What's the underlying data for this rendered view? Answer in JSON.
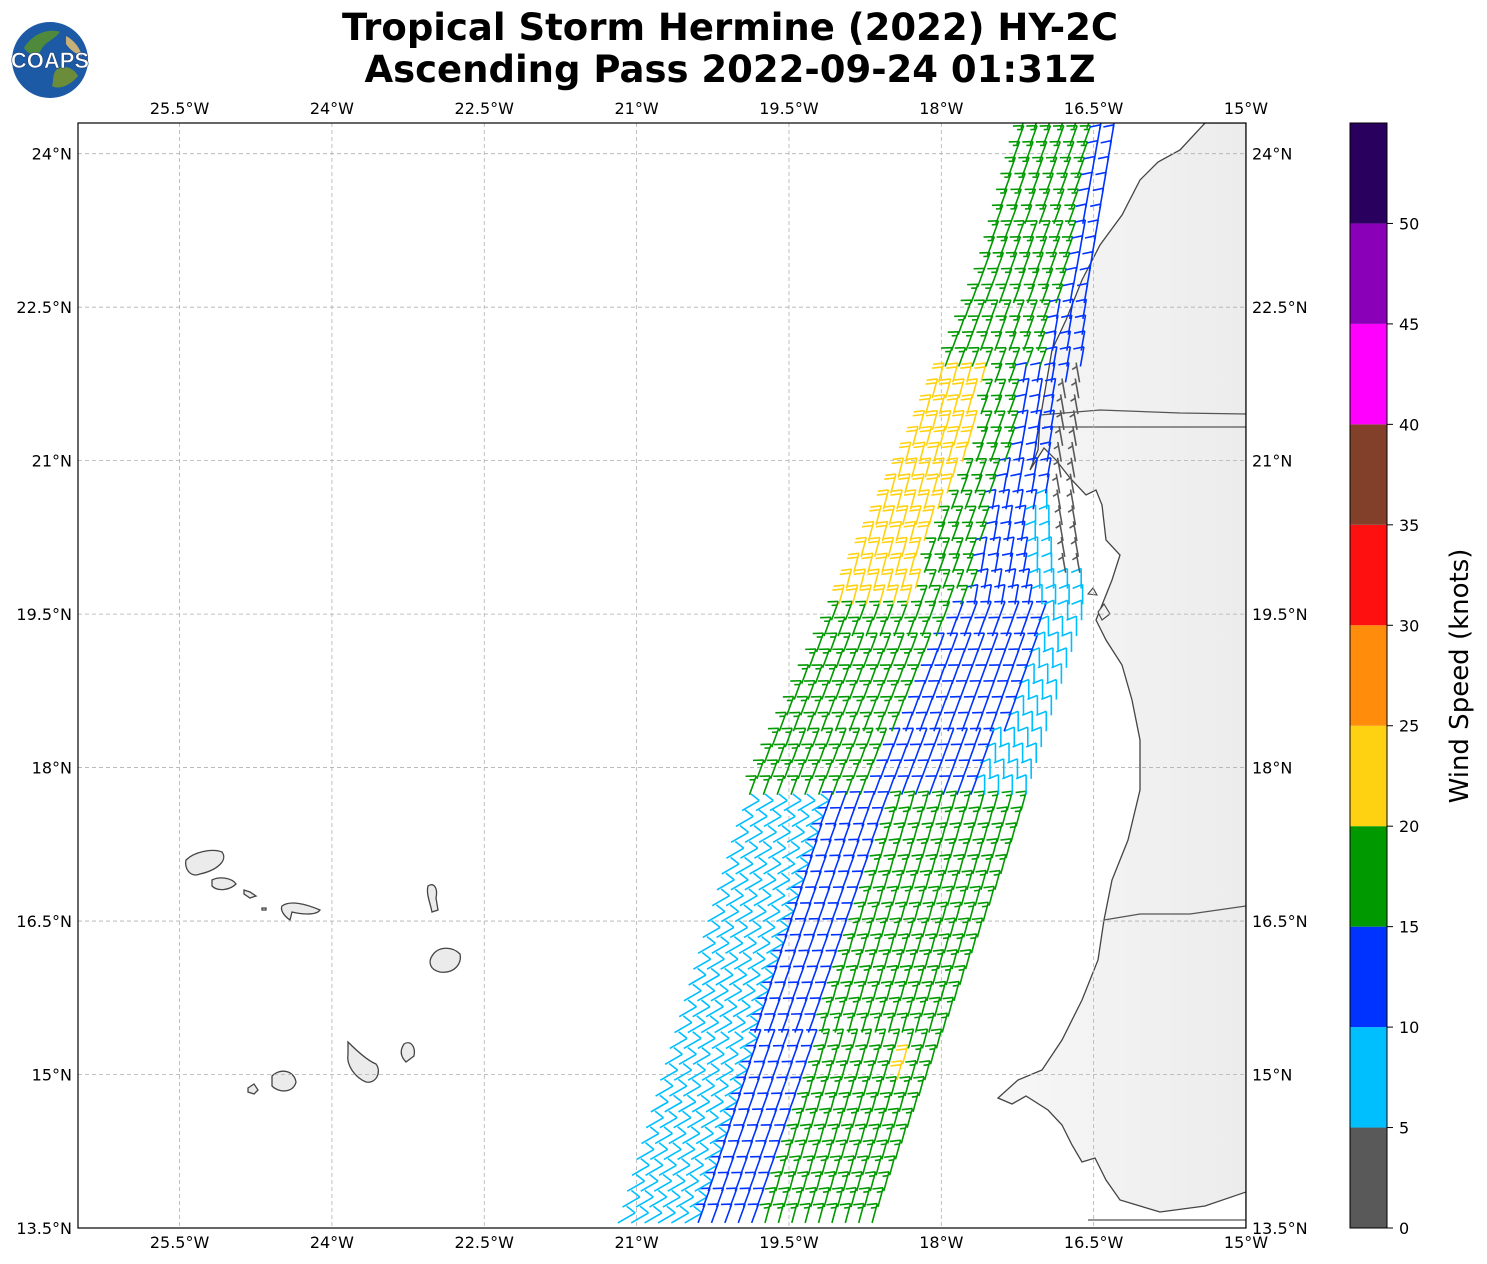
{
  "title": {
    "line1": "Tropical Storm Hermine (2022) HY-2C",
    "line2": "Ascending Pass 2022-09-24 01:31Z"
  },
  "logo": {
    "text": "COAPS"
  },
  "map": {
    "lon_range": [
      -26.5,
      -15.0
    ],
    "lat_range": [
      13.5,
      24.3
    ],
    "gridlines": true,
    "x_ticks": [
      {
        "lon": -25.5,
        "label": "25.5°W"
      },
      {
        "lon": -24.0,
        "label": "24°W"
      },
      {
        "lon": -22.5,
        "label": "22.5°W"
      },
      {
        "lon": -21.0,
        "label": "21°W"
      },
      {
        "lon": -19.5,
        "label": "19.5°W"
      },
      {
        "lon": -18.0,
        "label": "18°W"
      },
      {
        "lon": -16.5,
        "label": "16.5°W"
      },
      {
        "lon": -15.0,
        "label": "15°W"
      }
    ],
    "y_ticks": [
      {
        "lat": 24.0,
        "label": "24°N"
      },
      {
        "lat": 22.5,
        "label": "22.5°N"
      },
      {
        "lat": 21.0,
        "label": "21°N"
      },
      {
        "lat": 19.5,
        "label": "19.5°N"
      },
      {
        "lat": 18.0,
        "label": "18°N"
      },
      {
        "lat": 16.5,
        "label": "16.5°N"
      },
      {
        "lat": 15.0,
        "label": "15°N"
      },
      {
        "lat": 13.5,
        "label": "13.5°N"
      }
    ]
  },
  "colorbar": {
    "label": "Wind Speed (knots)",
    "bins": [
      {
        "min": 0,
        "max": 5,
        "color": "#595959"
      },
      {
        "min": 5,
        "max": 10,
        "color": "#00bfff"
      },
      {
        "min": 10,
        "max": 15,
        "color": "#0033ff"
      },
      {
        "min": 15,
        "max": 20,
        "color": "#009900"
      },
      {
        "min": 20,
        "max": 25,
        "color": "#ffd211"
      },
      {
        "min": 25,
        "max": 30,
        "color": "#ff8c0a"
      },
      {
        "min": 30,
        "max": 35,
        "color": "#ff1010"
      },
      {
        "min": 35,
        "max": 40,
        "color": "#82402a"
      },
      {
        "min": 40,
        "max": 45,
        "color": "#ff00ff"
      },
      {
        "min": 45,
        "max": 50,
        "color": "#8a00b8"
      },
      {
        "min": 50,
        "max": 55,
        "color": "#2a005e"
      }
    ],
    "tick_labels": [
      "0",
      "5",
      "10",
      "15",
      "20",
      "25",
      "30",
      "35",
      "40",
      "45",
      "50"
    ]
  },
  "chart_data": {
    "type": "wind_barbs",
    "title": "Tropical Storm Hermine (2022) HY-2C Ascending Pass 2022-09-24 01:31Z",
    "units": "knots",
    "swath": {
      "description": "HY-2C scatterometer swath off the West African coast",
      "west_edge": [
        [
          -21.2,
          13.5
        ],
        [
          -20.0,
          17.5
        ],
        [
          -19.1,
          19.4
        ],
        [
          -18.3,
          21.1
        ],
        [
          -17.6,
          22.8
        ],
        [
          -17.2,
          24.3
        ]
      ],
      "east_edge": [
        [
          -18.7,
          13.5
        ],
        [
          -17.4,
          17.0
        ],
        [
          -16.6,
          19.5
        ],
        [
          -16.7,
          20.6
        ],
        [
          -16.6,
          22.5
        ],
        [
          -16.3,
          24.3
        ]
      ]
    },
    "speed_regions": [
      {
        "area": "northern swath 22-24.3N",
        "speed_kt": 17,
        "direction_from_deg": 20
      },
      {
        "area": "western edge 19.5-21.8N",
        "speed_kt": 22,
        "direction_from_deg": 15
      },
      {
        "area": "eastern near-coast 20-21N",
        "speed_kt": 12,
        "direction_from_deg": 10
      },
      {
        "area": "Banc d'Arguin 19.5-20.6N",
        "speed_kt": 3,
        "direction_from_deg": 350
      },
      {
        "area": "near coast 19-20N",
        "speed_kt": 8,
        "direction_from_deg": 0
      },
      {
        "area": "western swath 13.5-17.5N",
        "speed_kt": 8,
        "direction_from_deg": 60
      },
      {
        "area": "central swath 14-19N",
        "speed_kt": 12,
        "direction_from_deg": 20
      },
      {
        "area": "eastern swath 13.5-19N",
        "speed_kt": 16,
        "direction_from_deg": 15
      },
      {
        "area": "isolated near 18.7N 19.6W and 15.0N 17.8W",
        "speed_kt": 21,
        "direction_from_deg": 15
      }
    ]
  }
}
